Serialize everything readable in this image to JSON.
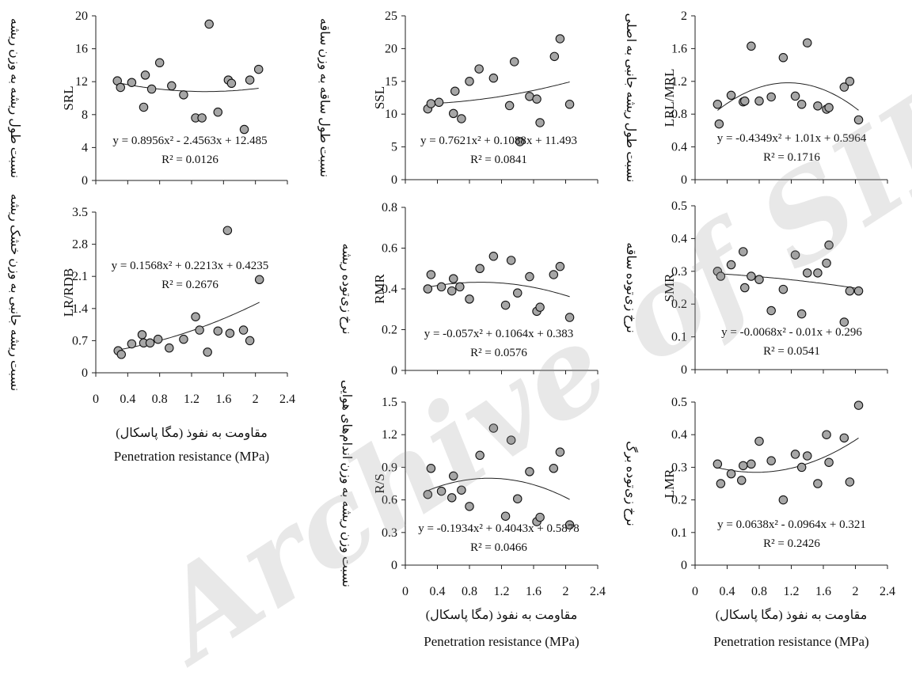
{
  "watermark": "Archive of SID",
  "x_axis": {
    "ticks": [
      "0",
      "0.4",
      "0.8",
      "1.2",
      "1.6",
      "2",
      "2.4"
    ],
    "label_fa": "مقاومت به نفوذ (مگا پاسکال)",
    "label_en": "Penetration resistance (MPa)"
  },
  "chart_data": [
    {
      "type": "scatter",
      "ylabel": "SRL",
      "ylabel_fa": "نسبت طول ریشه به وزن ریشه",
      "ylim": [
        0,
        20
      ],
      "yticks": [
        "0",
        "4",
        "8",
        "12",
        "16",
        "20"
      ],
      "xlim": [
        0,
        2.4
      ],
      "equation": "y = 0.8956x² - 2.4563x + 12.485",
      "r2": "R² = 0.0126",
      "coef": [
        0.8956,
        -2.4563,
        12.485
      ],
      "points": [
        [
          0.27,
          12.1
        ],
        [
          0.31,
          11.3
        ],
        [
          0.45,
          11.9
        ],
        [
          0.6,
          8.9
        ],
        [
          0.62,
          12.8
        ],
        [
          0.7,
          11.1
        ],
        [
          0.8,
          14.3
        ],
        [
          0.95,
          11.5
        ],
        [
          1.1,
          10.4
        ],
        [
          1.25,
          7.6
        ],
        [
          1.33,
          7.6
        ],
        [
          1.42,
          19.0
        ],
        [
          1.53,
          8.3
        ],
        [
          1.66,
          12.2
        ],
        [
          1.7,
          11.8
        ],
        [
          1.86,
          6.2
        ],
        [
          1.93,
          12.2
        ],
        [
          2.04,
          13.5
        ]
      ],
      "fit_range": [
        0.27,
        2.04
      ]
    },
    {
      "type": "scatter",
      "ylabel": "SSL",
      "ylabel_fa": "نسبت طول ساقه به وزن ساقه",
      "ylim": [
        0,
        25
      ],
      "yticks": [
        "0",
        "5",
        "10",
        "15",
        "20",
        "25"
      ],
      "xlim": [
        0,
        2.4
      ],
      "equation": "y = 0.7621x² + 0.1088x + 11.493",
      "r2": "R² = 0.0841",
      "coef": [
        0.7621,
        0.1088,
        11.493
      ],
      "points": [
        [
          0.28,
          10.8
        ],
        [
          0.32,
          11.6
        ],
        [
          0.42,
          11.8
        ],
        [
          0.6,
          10.1
        ],
        [
          0.62,
          13.5
        ],
        [
          0.7,
          9.3
        ],
        [
          0.8,
          15.0
        ],
        [
          0.92,
          16.9
        ],
        [
          1.1,
          15.5
        ],
        [
          1.3,
          11.3
        ],
        [
          1.36,
          18.0
        ],
        [
          1.43,
          5.8
        ],
        [
          1.55,
          12.7
        ],
        [
          1.64,
          12.3
        ],
        [
          1.68,
          8.7
        ],
        [
          1.86,
          18.8
        ],
        [
          1.93,
          21.5
        ],
        [
          2.05,
          11.5
        ]
      ],
      "fit_range": [
        0.28,
        2.05
      ]
    },
    {
      "type": "scatter",
      "ylabel": "LRL/MRL",
      "ylabel_fa": "نسبت طول ریشه جانبی به اصلی",
      "ylim": [
        0,
        2
      ],
      "yticks": [
        "0",
        "0.4",
        "0.8",
        "1.2",
        "1.6",
        "2"
      ],
      "xlim": [
        0,
        2.4
      ],
      "equation": "y = -0.4349x² + 1.01x + 0.5964",
      "r2": "R² = 0.1716",
      "coef": [
        -0.4349,
        1.01,
        0.5964
      ],
      "points": [
        [
          0.28,
          0.92
        ],
        [
          0.3,
          0.68
        ],
        [
          0.45,
          1.03
        ],
        [
          0.6,
          0.95
        ],
        [
          0.62,
          0.96
        ],
        [
          0.7,
          1.63
        ],
        [
          0.8,
          0.96
        ],
        [
          0.95,
          1.01
        ],
        [
          1.1,
          1.49
        ],
        [
          1.25,
          1.02
        ],
        [
          1.33,
          0.92
        ],
        [
          1.4,
          1.67
        ],
        [
          1.53,
          0.9
        ],
        [
          1.64,
          0.86
        ],
        [
          1.67,
          0.88
        ],
        [
          1.86,
          1.13
        ],
        [
          1.93,
          1.2
        ],
        [
          2.04,
          0.73
        ]
      ],
      "fit_range": [
        0.28,
        2.04
      ]
    },
    {
      "type": "scatter",
      "ylabel": "LR/RDB",
      "ylabel_fa": "نسبت ریشه جانبی به وزن خشک ریشه",
      "ylim": [
        0,
        3.5
      ],
      "yticks": [
        "0",
        "0.7",
        "1.4",
        "2.1",
        "2.8",
        "3.5"
      ],
      "xlim": [
        0,
        2.4
      ],
      "equation": "y = 0.1568x² + 0.2213x + 0.4235",
      "r2": "R² = 0.2676",
      "coef": [
        0.1568,
        0.2213,
        0.4235
      ],
      "points": [
        [
          0.28,
          0.48
        ],
        [
          0.32,
          0.4
        ],
        [
          0.45,
          0.63
        ],
        [
          0.58,
          0.83
        ],
        [
          0.6,
          0.65
        ],
        [
          0.68,
          0.65
        ],
        [
          0.78,
          0.73
        ],
        [
          0.92,
          0.54
        ],
        [
          1.1,
          0.73
        ],
        [
          1.25,
          1.22
        ],
        [
          1.3,
          0.93
        ],
        [
          1.4,
          0.45
        ],
        [
          1.53,
          0.91
        ],
        [
          1.65,
          3.1
        ],
        [
          1.68,
          0.86
        ],
        [
          1.85,
          0.93
        ],
        [
          1.93,
          0.7
        ],
        [
          2.05,
          2.03
        ]
      ],
      "fit_range": [
        0.28,
        2.05
      ]
    },
    {
      "type": "scatter",
      "ylabel": "RMR",
      "ylabel_fa": "نرخ زی‌توده ریشه",
      "ylim": [
        0,
        0.8
      ],
      "yticks": [
        "0",
        "0.2",
        "0.4",
        "0.6",
        "0.8"
      ],
      "xlim": [
        0,
        2.4
      ],
      "equation": "y = -0.057x² + 0.1064x + 0.383",
      "r2": "R² = 0.0576",
      "coef": [
        -0.057,
        0.1064,
        0.383
      ],
      "points": [
        [
          0.28,
          0.4
        ],
        [
          0.32,
          0.47
        ],
        [
          0.45,
          0.41
        ],
        [
          0.58,
          0.39
        ],
        [
          0.6,
          0.45
        ],
        [
          0.68,
          0.41
        ],
        [
          0.8,
          0.35
        ],
        [
          0.93,
          0.5
        ],
        [
          1.1,
          0.56
        ],
        [
          1.25,
          0.32
        ],
        [
          1.32,
          0.54
        ],
        [
          1.4,
          0.38
        ],
        [
          1.55,
          0.46
        ],
        [
          1.64,
          0.29
        ],
        [
          1.68,
          0.31
        ],
        [
          1.85,
          0.47
        ],
        [
          1.93,
          0.51
        ],
        [
          2.05,
          0.26
        ]
      ],
      "fit_range": [
        0.28,
        2.05
      ]
    },
    {
      "type": "scatter",
      "ylabel": "SMR",
      "ylabel_fa": "نرخ زی‌توده ساقه",
      "ylim": [
        0,
        0.5
      ],
      "yticks": [
        "0",
        "0.1",
        "0.2",
        "0.3",
        "0.4",
        "0.5"
      ],
      "xlim": [
        0,
        2.4
      ],
      "equation": "y = -0.0068x² - 0.01x + 0.296",
      "r2": "R² = 0.0541",
      "coef": [
        -0.0068,
        -0.01,
        0.296
      ],
      "points": [
        [
          0.28,
          0.3
        ],
        [
          0.32,
          0.285
        ],
        [
          0.45,
          0.32
        ],
        [
          0.6,
          0.36
        ],
        [
          0.62,
          0.25
        ],
        [
          0.7,
          0.285
        ],
        [
          0.8,
          0.275
        ],
        [
          0.95,
          0.18
        ],
        [
          1.1,
          0.245
        ],
        [
          1.25,
          0.35
        ],
        [
          1.33,
          0.17
        ],
        [
          1.4,
          0.295
        ],
        [
          1.53,
          0.295
        ],
        [
          1.64,
          0.325
        ],
        [
          1.67,
          0.38
        ],
        [
          1.86,
          0.145
        ],
        [
          1.93,
          0.24
        ],
        [
          2.04,
          0.24
        ]
      ],
      "fit_range": [
        0.28,
        2.04
      ]
    },
    {
      "type": "scatter",
      "ylabel": "R/S",
      "ylabel_fa": "نسبت وزن ریشه به وزن اندام‌های هوایی",
      "ylim": [
        0,
        1.5
      ],
      "yticks": [
        "0",
        "0.3",
        "0.6",
        "0.9",
        "1.2",
        "1.5"
      ],
      "xlim": [
        0,
        2.4
      ],
      "equation": "y = -0.1934x² + 0.4043x + 0.5878",
      "r2": "R² = 0.0466",
      "coef": [
        -0.1934,
        0.4043,
        0.5878
      ],
      "points": [
        [
          0.28,
          0.65
        ],
        [
          0.32,
          0.89
        ],
        [
          0.45,
          0.68
        ],
        [
          0.58,
          0.62
        ],
        [
          0.6,
          0.82
        ],
        [
          0.7,
          0.69
        ],
        [
          0.8,
          0.54
        ],
        [
          0.93,
          1.01
        ],
        [
          1.1,
          1.26
        ],
        [
          1.25,
          0.45
        ],
        [
          1.32,
          1.15
        ],
        [
          1.4,
          0.61
        ],
        [
          1.55,
          0.86
        ],
        [
          1.64,
          0.4
        ],
        [
          1.68,
          0.44
        ],
        [
          1.85,
          0.89
        ],
        [
          1.93,
          1.04
        ],
        [
          2.05,
          0.37
        ]
      ],
      "fit_range": [
        0.28,
        2.05
      ]
    },
    {
      "type": "scatter",
      "ylabel": "LMR",
      "ylabel_fa": "نرخ زی‌توده برگ",
      "ylim": [
        0,
        0.5
      ],
      "yticks": [
        "0",
        "0.1",
        "0.2",
        "0.3",
        "0.4",
        "0.5"
      ],
      "xlim": [
        0,
        2.4
      ],
      "equation": "y = 0.0638x² - 0.0964x + 0.321",
      "r2": "R² = 0.2426",
      "coef": [
        0.0638,
        -0.0964,
        0.321
      ],
      "points": [
        [
          0.28,
          0.31
        ],
        [
          0.32,
          0.25
        ],
        [
          0.45,
          0.28
        ],
        [
          0.58,
          0.26
        ],
        [
          0.6,
          0.305
        ],
        [
          0.7,
          0.31
        ],
        [
          0.8,
          0.38
        ],
        [
          0.95,
          0.32
        ],
        [
          1.1,
          0.2
        ],
        [
          1.25,
          0.34
        ],
        [
          1.33,
          0.3
        ],
        [
          1.4,
          0.335
        ],
        [
          1.53,
          0.25
        ],
        [
          1.64,
          0.4
        ],
        [
          1.67,
          0.315
        ],
        [
          1.86,
          0.39
        ],
        [
          1.93,
          0.255
        ],
        [
          2.04,
          0.49
        ]
      ],
      "fit_range": [
        0.28,
        2.04
      ]
    }
  ]
}
